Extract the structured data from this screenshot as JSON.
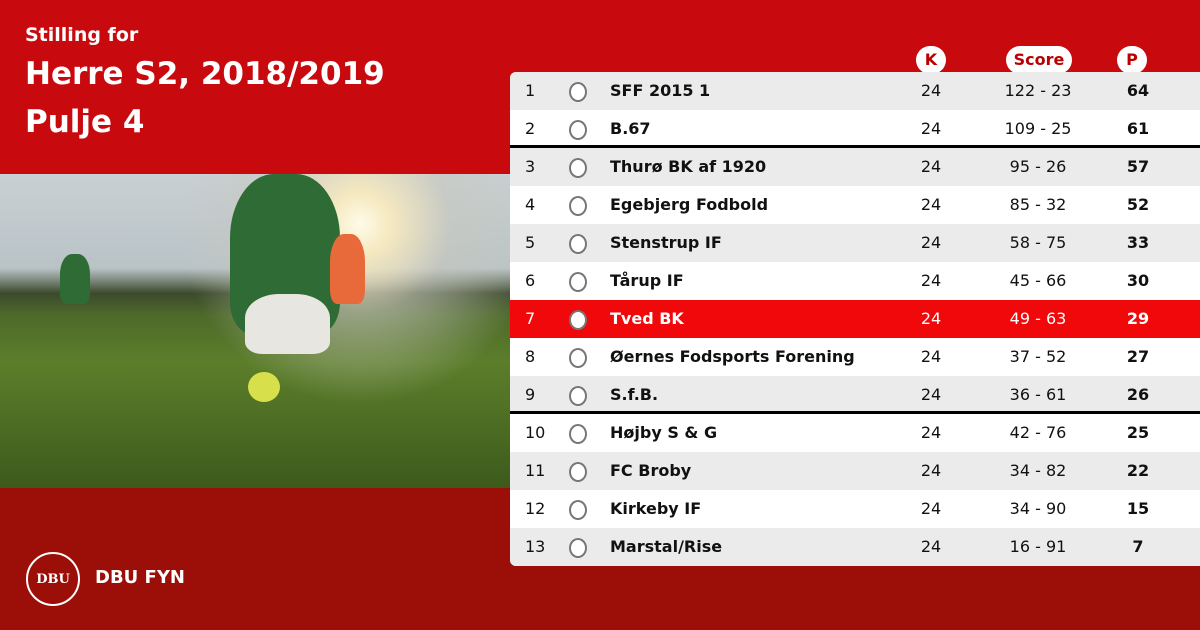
{
  "header": {
    "subtitle": "Stilling for",
    "title": "Herre S2, 2018/2019",
    "pool": "Pulje 4"
  },
  "columns": {
    "k": "K",
    "score": "Score",
    "p": "P"
  },
  "colors": {
    "primary": "#c80a0f",
    "footer": "#9b0f08",
    "highlight": "#f0080a"
  },
  "rows": [
    {
      "rank": "1",
      "team": "SFF 2015 1",
      "k": "24",
      "score": "122 - 23",
      "p": "64"
    },
    {
      "rank": "2",
      "team": "B.67",
      "k": "24",
      "score": "109 - 25",
      "p": "61"
    },
    {
      "rank": "3",
      "team": "Thurø BK af 1920",
      "k": "24",
      "score": "95 - 26",
      "p": "57"
    },
    {
      "rank": "4",
      "team": "Egebjerg Fodbold",
      "k": "24",
      "score": "85 - 32",
      "p": "52"
    },
    {
      "rank": "5",
      "team": "Stenstrup IF",
      "k": "24",
      "score": "58 - 75",
      "p": "33"
    },
    {
      "rank": "6",
      "team": "Tårup IF",
      "k": "24",
      "score": "45 - 66",
      "p": "30"
    },
    {
      "rank": "7",
      "team": "Tved BK",
      "k": "24",
      "score": "49 - 63",
      "p": "29",
      "highlight": true
    },
    {
      "rank": "8",
      "team": "Øernes Fodsports Forening",
      "k": "24",
      "score": "37 - 52",
      "p": "27"
    },
    {
      "rank": "9",
      "team": "S.f.B.",
      "k": "24",
      "score": "36 - 61",
      "p": "26"
    },
    {
      "rank": "10",
      "team": "Højby S & G",
      "k": "24",
      "score": "42 - 76",
      "p": "25"
    },
    {
      "rank": "11",
      "team": "FC Broby",
      "k": "24",
      "score": "34 - 82",
      "p": "22"
    },
    {
      "rank": "12",
      "team": "Kirkeby IF",
      "k": "24",
      "score": "34 - 90",
      "p": "15"
    },
    {
      "rank": "13",
      "team": "Marstal/Rise",
      "k": "24",
      "score": "16 - 91",
      "p": "7"
    }
  ],
  "footer": {
    "logo_text": "DBU",
    "org": "DBU FYN"
  }
}
